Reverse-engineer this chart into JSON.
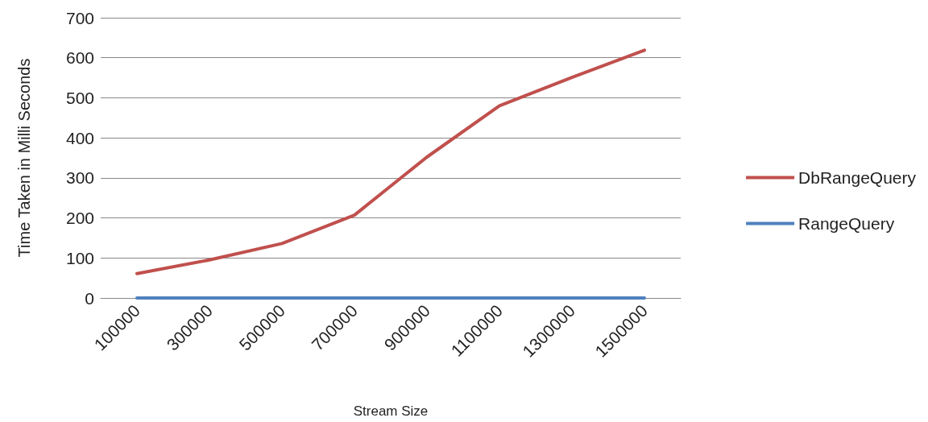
{
  "chart_data": {
    "type": "line",
    "xlabel": "Stream Size",
    "ylabel": "Time Taken in Milli Seconds",
    "categories": [
      "100000",
      "300000",
      "500000",
      "700000",
      "900000",
      "1100000",
      "1300000",
      "1500000"
    ],
    "series": [
      {
        "name": "DbRangeQuery",
        "color": "#c0504d",
        "values": [
          61,
          95,
          136,
          207,
          352,
          480,
          551,
          619
        ]
      },
      {
        "name": "RangeQuery",
        "color": "#4f81bd",
        "values": [
          0,
          0,
          0,
          0,
          0,
          0,
          0,
          0
        ]
      }
    ],
    "ylim": [
      0,
      700
    ],
    "yticks": [
      0,
      100,
      200,
      300,
      400,
      500,
      600,
      700
    ],
    "grid": "y",
    "legend": "right",
    "marker": "none",
    "line_style": "solid"
  }
}
